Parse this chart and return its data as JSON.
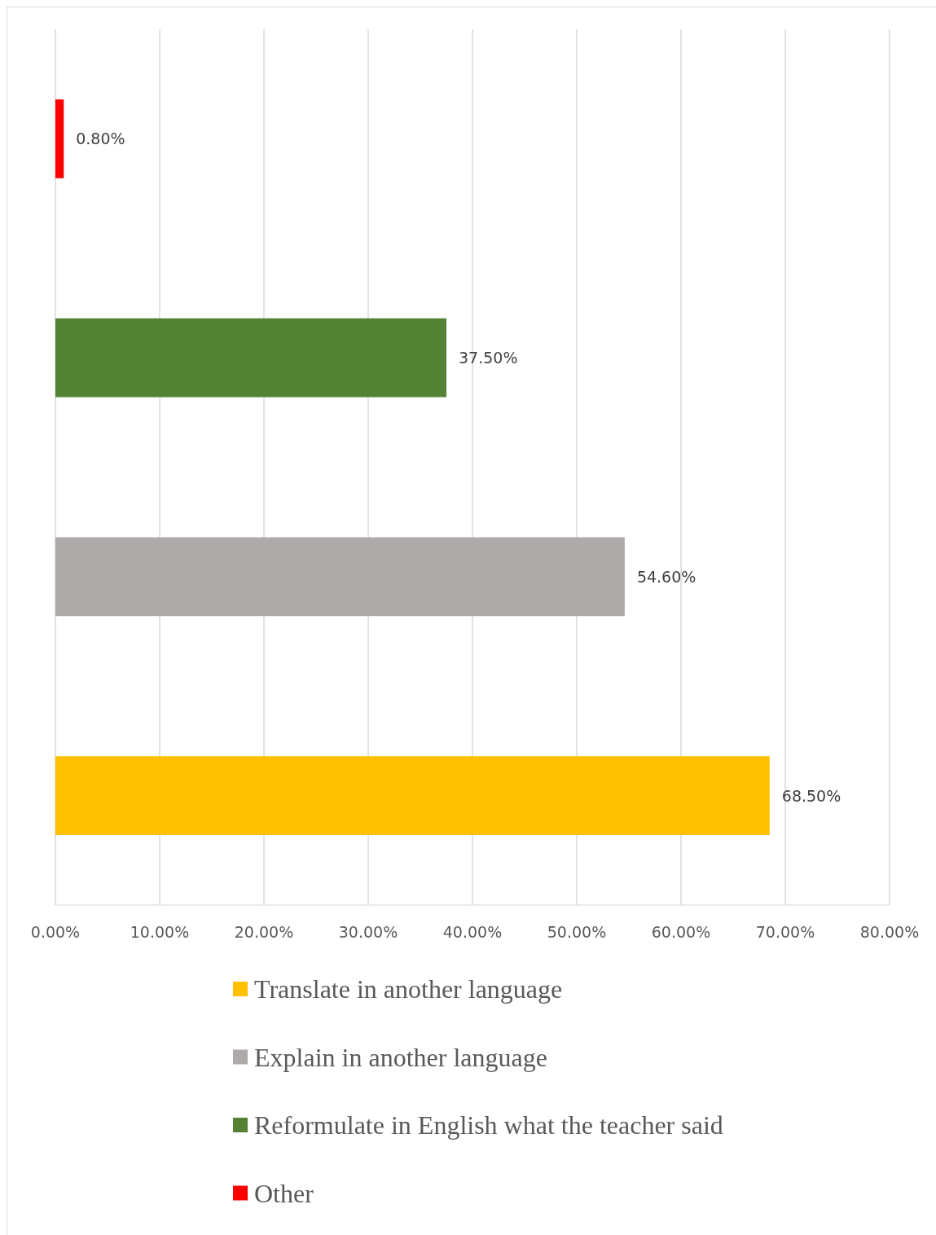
{
  "chart_data": {
    "type": "bar",
    "orientation": "horizontal",
    "categories": [
      null,
      null,
      null,
      null
    ],
    "series": [
      {
        "name": "Translate in another language",
        "color": "#ffc000",
        "values": [
          null,
          null,
          null,
          68.5
        ],
        "value_labels": [
          null,
          null,
          null,
          "68.50%"
        ]
      },
      {
        "name": "Explain in another language",
        "color": "#aeaaaa",
        "values": [
          null,
          null,
          54.6,
          null
        ],
        "value_labels": [
          null,
          null,
          "54.60%",
          null
        ]
      },
      {
        "name": "Reformulate in English what the teacher said",
        "color": "#548235",
        "values": [
          null,
          37.5,
          null,
          null
        ],
        "value_labels": [
          null,
          "37.50%",
          null,
          null
        ]
      },
      {
        "name": "Other",
        "color": "#ff0000",
        "values": [
          0.8,
          null,
          null,
          null
        ],
        "value_labels": [
          "0.80%",
          null,
          null,
          null
        ]
      }
    ],
    "xlim": [
      0,
      80
    ],
    "xticks": [
      {
        "value": 0,
        "label": "0.00%"
      },
      {
        "value": 10,
        "label": "10.00%"
      },
      {
        "value": 20,
        "label": "20.00%"
      },
      {
        "value": 30,
        "label": "30.00%"
      },
      {
        "value": 40,
        "label": "40.00%"
      },
      {
        "value": 50,
        "label": "50.00%"
      },
      {
        "value": 60,
        "label": "60.00%"
      },
      {
        "value": 70,
        "label": "70.00%"
      },
      {
        "value": 80,
        "label": "80.00%"
      }
    ],
    "grid": "x",
    "legend": "bottom"
  }
}
